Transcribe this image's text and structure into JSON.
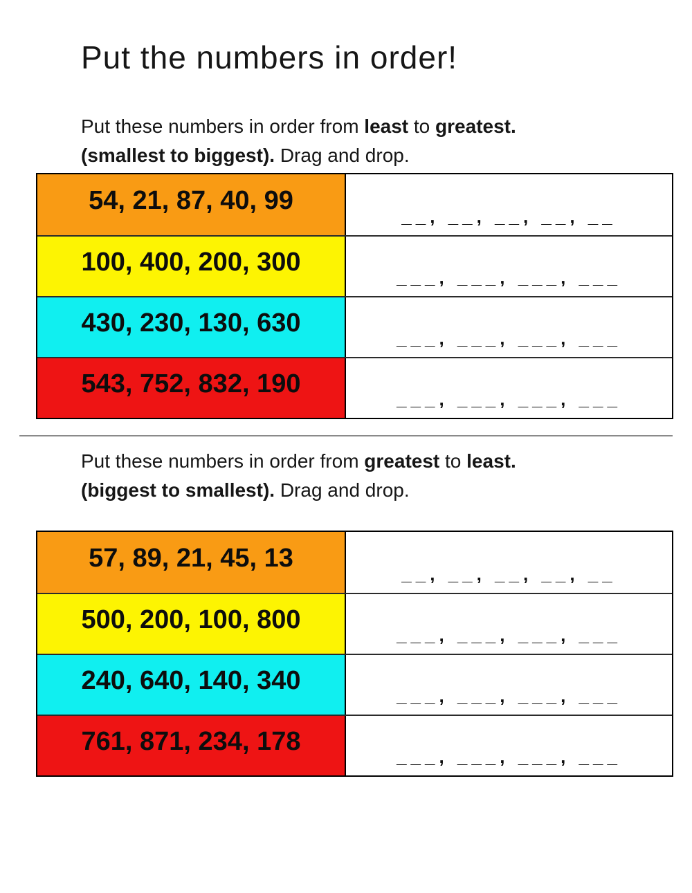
{
  "title": "Put the numbers in order!",
  "colors": {
    "orange": "#f99b14",
    "yellow": "#fdf402",
    "cyan": "#10eff0",
    "red": "#ee1414",
    "divider": "#8a8a8a",
    "border": "#000000"
  },
  "section1": {
    "instruction": {
      "seg_normal_1": "Put these numbers in order from ",
      "seg_bold_1": "least",
      "seg_normal_2": " to ",
      "seg_bold_2": "greatest.",
      "seg_bold_3": "(smallest to biggest).",
      "seg_normal_3": " Drag and drop."
    },
    "rows": [
      {
        "color_name": "orange",
        "numbers": "54, 21, 87, 40, 99",
        "blanks": "__, __, __, __, __"
      },
      {
        "color_name": "yellow",
        "numbers": "100, 400, 200, 300",
        "blanks": "___, ___, ___, ___"
      },
      {
        "color_name": "cyan",
        "numbers": "430, 230, 130, 630",
        "blanks": "___, ___, ___, ___"
      },
      {
        "color_name": "red",
        "numbers": "543, 752, 832, 190",
        "blanks": "___, ___, ___, ___"
      }
    ]
  },
  "section2": {
    "instruction": {
      "seg_normal_1": "Put these numbers in order from ",
      "seg_bold_1": "greatest",
      "seg_normal_2": " to ",
      "seg_bold_2": "least.",
      "seg_bold_3": "(biggest to smallest).",
      "seg_normal_3": " Drag and drop."
    },
    "rows": [
      {
        "color_name": "orange",
        "numbers": "57, 89, 21, 45, 13",
        "blanks": "__, __, __, __, __"
      },
      {
        "color_name": "yellow",
        "numbers": "500, 200, 100, 800",
        "blanks": "___, ___, ___, ___"
      },
      {
        "color_name": "cyan",
        "numbers": "240, 640, 140, 340",
        "blanks": "___, ___, ___, ___"
      },
      {
        "color_name": "red",
        "numbers": "761, 871, 234, 178",
        "blanks": "___, ___, ___, ___"
      }
    ]
  }
}
